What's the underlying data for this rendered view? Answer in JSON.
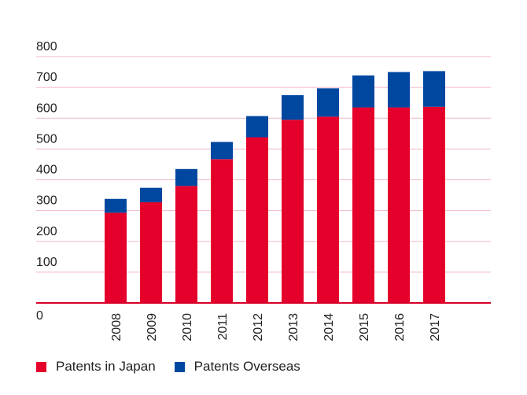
{
  "chart_data": {
    "type": "bar",
    "stacked": true,
    "categories": [
      "2008",
      "2009",
      "2010",
      "2011",
      "2012",
      "2013",
      "2014",
      "2015",
      "2016",
      "2017"
    ],
    "series": [
      {
        "name": "Patents in Japan",
        "color": "#e4002b",
        "values": [
          293,
          327,
          380,
          467,
          538,
          595,
          605,
          635,
          635,
          637
        ]
      },
      {
        "name": "Patents Overseas",
        "color": "#0047a0",
        "values": [
          45,
          47,
          55,
          56,
          69,
          80,
          92,
          104,
          115,
          116
        ]
      }
    ],
    "yticks": [
      "0",
      "100",
      "200",
      "300",
      "400",
      "500",
      "600",
      "700",
      "800"
    ],
    "ylim": [
      0,
      800
    ],
    "grid": true,
    "gridline_color": "#f0b8c4",
    "axis_color": "#d9002a",
    "legend": "bottom-left",
    "title": "",
    "xlabel": "",
    "ylabel": ""
  }
}
